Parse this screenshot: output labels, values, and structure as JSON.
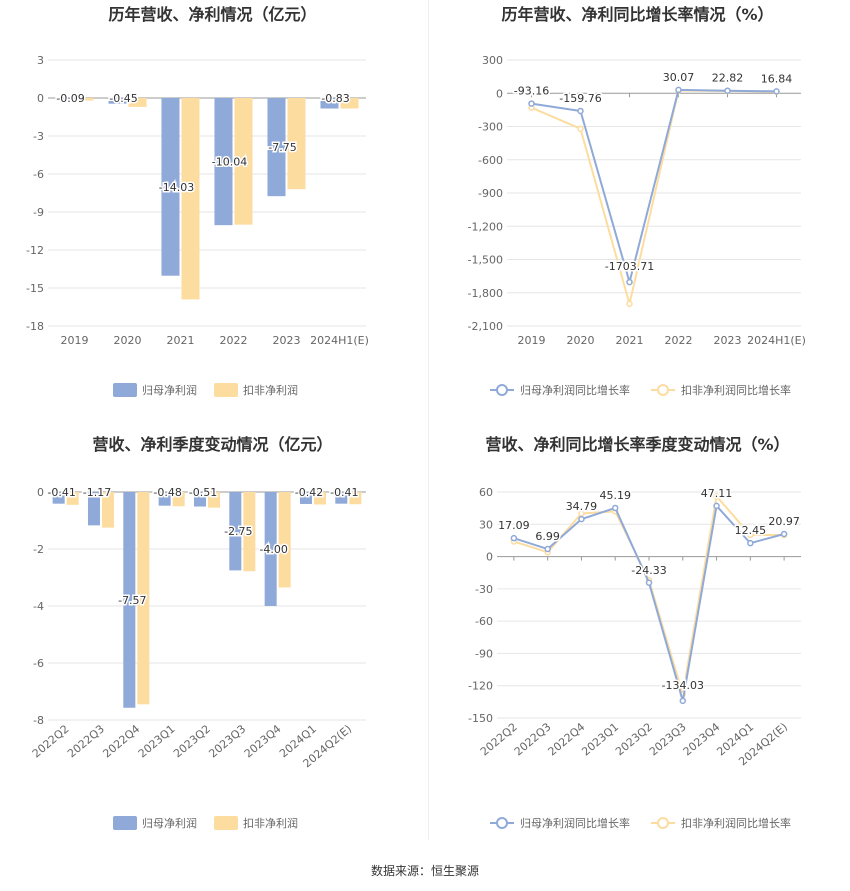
{
  "source_label": "数据来源：恒生聚源",
  "colors": {
    "series1": "#8fa9d8",
    "series2": "#fddca0",
    "grid": "#e6e6e6",
    "axis": "#666666"
  },
  "chart_data": [
    {
      "type": "bar",
      "title": "历年营收、净利情况（亿元）",
      "categories": [
        "2019",
        "2020",
        "2021",
        "2022",
        "2023",
        "2024H1(E)"
      ],
      "ylim": [
        -18,
        3
      ],
      "yticks": [
        3,
        0,
        -3,
        -6,
        -9,
        -12,
        -15,
        -18
      ],
      "grid": true,
      "legend_position": "bottom",
      "series": [
        {
          "name": "归母净利润",
          "values": [
            -0.09,
            -0.45,
            -14.03,
            -10.04,
            -7.75,
            -0.83
          ]
        },
        {
          "name": "扣非净利润",
          "values": [
            -0.2,
            -0.7,
            -15.9,
            -10.0,
            -7.2,
            -0.83
          ]
        }
      ],
      "labels": [
        "-0.09",
        "-0.45",
        "-14.03",
        "-10.04",
        "-7.75",
        "-0.83"
      ]
    },
    {
      "type": "line",
      "title": "历年营收、净利同比增长率情况（%）",
      "categories": [
        "2019",
        "2020",
        "2021",
        "2022",
        "2023",
        "2024H1(E)"
      ],
      "ylim": [
        -2100,
        300
      ],
      "yticks": [
        300,
        0,
        -300,
        -600,
        -900,
        -1200,
        -1500,
        -1800,
        -2100
      ],
      "grid": true,
      "legend_position": "bottom",
      "series": [
        {
          "name": "归母净利润同比增长率",
          "values": [
            -93.16,
            -159.76,
            -1703.71,
            30.07,
            22.82,
            16.84
          ]
        },
        {
          "name": "扣非净利润同比增长率",
          "values": [
            -130,
            -320,
            -1900,
            25,
            20,
            14
          ]
        }
      ],
      "labels": [
        "-93.16",
        "-159.76",
        "-1703.71",
        "30.07",
        "22.82",
        "16.84"
      ]
    },
    {
      "type": "bar",
      "title": "营收、净利季度变动情况（亿元）",
      "categories": [
        "2022Q2",
        "2022Q3",
        "2022Q4",
        "2023Q1",
        "2023Q2",
        "2023Q3",
        "2023Q4",
        "2024Q1",
        "2024Q2(E)"
      ],
      "ylim": [
        -8,
        0
      ],
      "yticks": [
        0,
        -2,
        -4,
        -6,
        -8
      ],
      "grid": true,
      "legend_position": "bottom",
      "series": [
        {
          "name": "归母净利润",
          "values": [
            -0.41,
            -1.17,
            -7.57,
            -0.48,
            -0.51,
            -2.75,
            -4.0,
            -0.42,
            -0.41
          ]
        },
        {
          "name": "扣非净利润",
          "values": [
            -0.45,
            -1.25,
            -7.45,
            -0.5,
            -0.55,
            -2.78,
            -3.35,
            -0.44,
            -0.43
          ]
        }
      ],
      "labels": [
        "-0.41",
        "-1.17",
        "-7.57",
        "-0.48",
        "-0.51",
        "-2.75",
        "-4.00",
        "-0.42",
        "-0.41"
      ]
    },
    {
      "type": "line",
      "title": "营收、净利同比增长率季度变动情况（%）",
      "categories": [
        "2022Q2",
        "2022Q3",
        "2022Q4",
        "2023Q1",
        "2023Q2",
        "2023Q3",
        "2023Q4",
        "2024Q1",
        "2024Q2(E)"
      ],
      "ylim": [
        -150,
        60
      ],
      "yticks": [
        60,
        30,
        0,
        -30,
        -60,
        -90,
        -120,
        -150
      ],
      "grid": true,
      "legend_position": "bottom",
      "series": [
        {
          "name": "归母净利润同比增长率",
          "values": [
            17.09,
            6.99,
            34.79,
            45.19,
            -24.33,
            -134.03,
            47.11,
            12.45,
            20.97
          ]
        },
        {
          "name": "扣非净利润同比增长率",
          "values": [
            14,
            4,
            40,
            42,
            -22,
            -128,
            56,
            20,
            20
          ]
        }
      ],
      "labels": [
        "17.09",
        "6.99",
        "34.79",
        "45.19",
        "-24.33",
        "-134.03",
        "47.11",
        "12.45",
        "20.97"
      ]
    }
  ]
}
